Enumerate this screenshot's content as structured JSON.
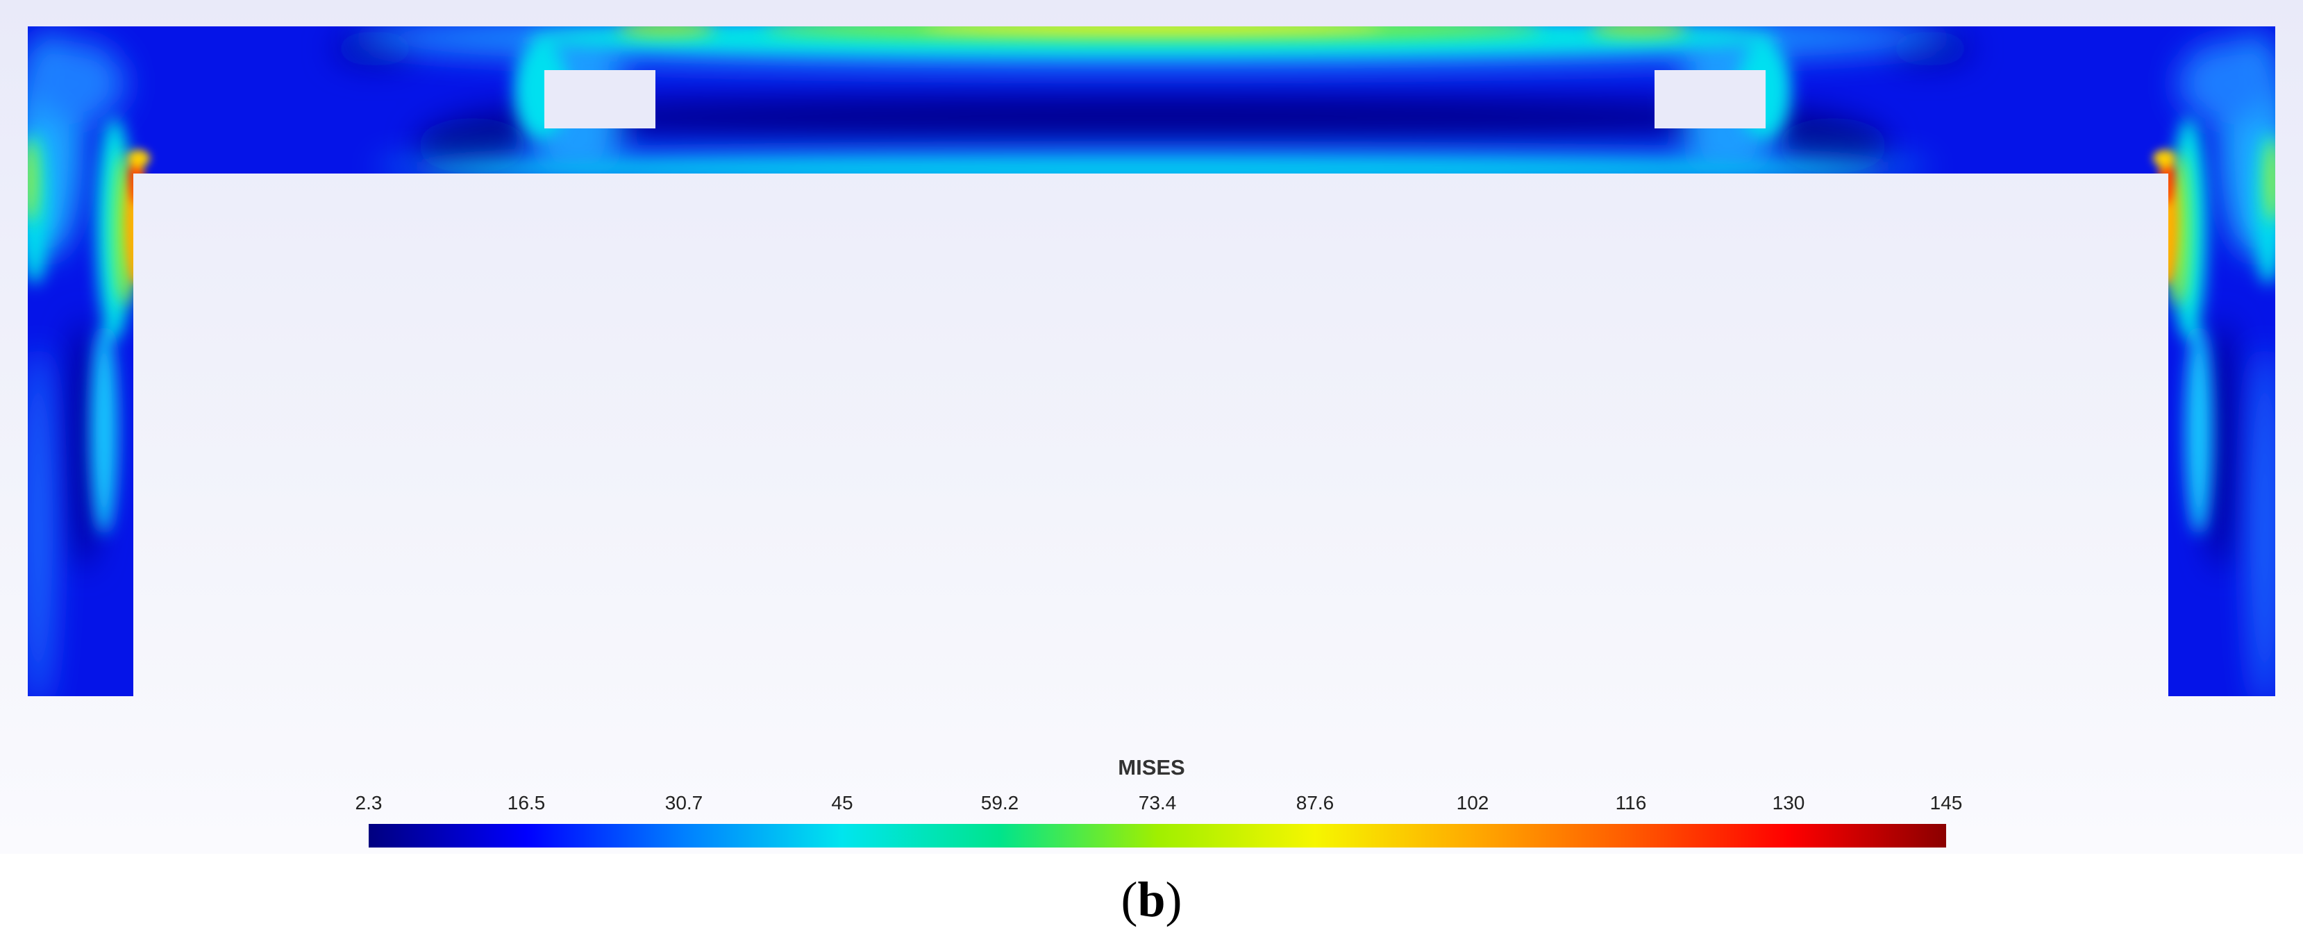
{
  "legend": {
    "title": "MISES",
    "ticks": [
      "2.3",
      "16.5",
      "30.7",
      "45",
      "59.2",
      "73.4",
      "87.6",
      "102",
      "116",
      "130",
      "145"
    ],
    "colors": [
      "#000080",
      "#0000ff",
      "#0080ff",
      "#00e5ee",
      "#00e48c",
      "#a0ef00",
      "#f6f600",
      "#ffaa00",
      "#ff5a00",
      "#ff0000",
      "#8b0000"
    ]
  },
  "caption": {
    "open": "(",
    "letter": "b",
    "close": ")"
  }
}
